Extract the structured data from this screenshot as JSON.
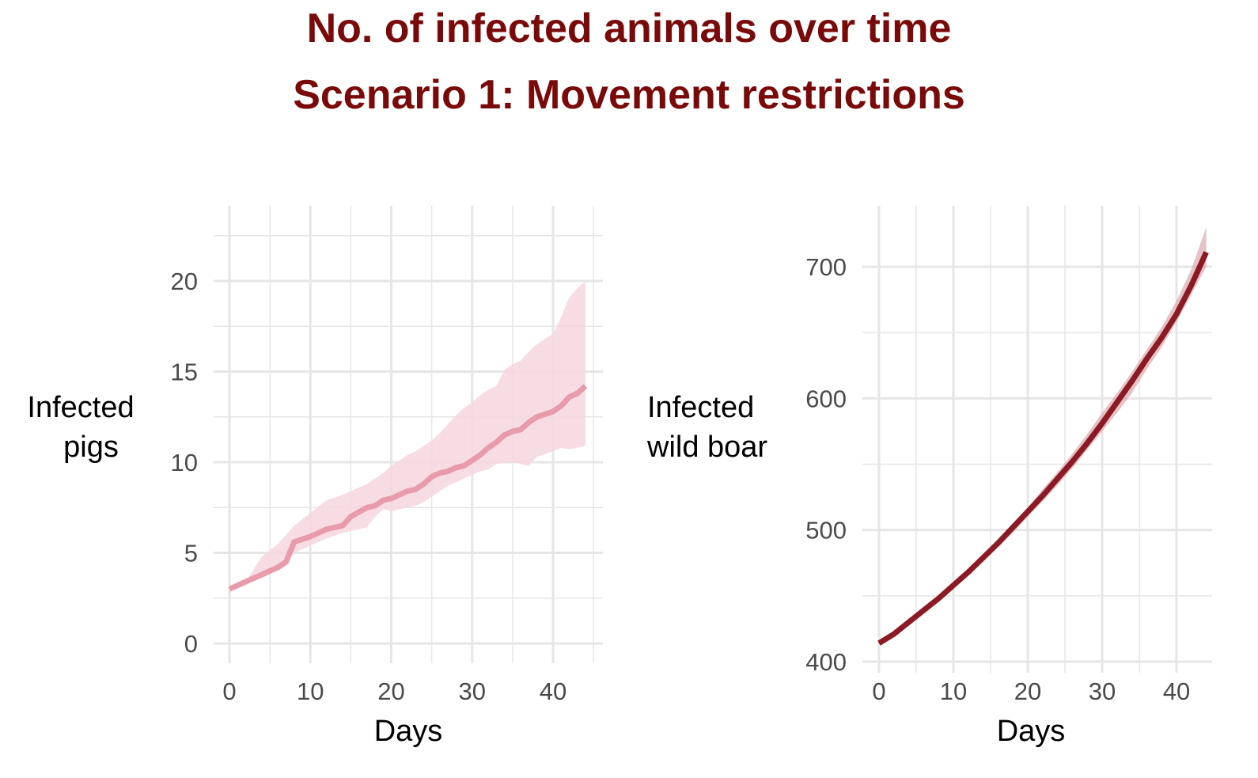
{
  "title_line1": "No. of infected animals over time",
  "title_line2": "Scenario 1: Movement restrictions",
  "colors": {
    "title": "#7a0a0a",
    "pigs_line": "#e89bab",
    "pigs_band": "#f7d6df",
    "boar_line": "#8b1a24",
    "boar_band": "#d9a1a8",
    "grid": "#e6e6e6"
  },
  "chart_data": [
    {
      "type": "line",
      "xlabel": "Days",
      "ylabel_lines": [
        "Infected",
        "pigs"
      ],
      "xlim": [
        0,
        44
      ],
      "ylim": [
        0,
        24
      ],
      "xticks": [
        "0",
        "10",
        "20",
        "30",
        "40"
      ],
      "yticks": [
        "0",
        "5",
        "10",
        "15",
        "20"
      ],
      "grid": true,
      "series": [
        {
          "x": [
            0,
            2,
            4,
            6,
            7,
            8,
            10,
            12,
            14,
            15,
            17,
            18,
            19,
            20,
            22,
            23,
            24,
            25,
            26,
            27,
            28,
            29,
            30,
            31,
            32,
            33,
            34,
            35,
            36,
            37,
            38,
            40,
            41,
            42,
            43,
            44
          ],
          "y": [
            3.0,
            3.4,
            3.8,
            4.2,
            4.5,
            5.6,
            5.9,
            6.3,
            6.5,
            7.0,
            7.5,
            7.6,
            7.9,
            8.0,
            8.4,
            8.5,
            8.8,
            9.2,
            9.4,
            9.5,
            9.7,
            9.8,
            10.1,
            10.4,
            10.8,
            11.1,
            11.5,
            11.7,
            11.8,
            12.2,
            12.5,
            12.8,
            13.1,
            13.6,
            13.8,
            14.2
          ],
          "lower": [
            3.0,
            3.4,
            3.8,
            4.2,
            4.5,
            5.0,
            5.4,
            5.8,
            6.1,
            6.2,
            6.4,
            7.0,
            7.4,
            7.3,
            7.5,
            7.6,
            7.8,
            8.1,
            8.4,
            8.7,
            8.9,
            9.1,
            9.3,
            9.5,
            9.6,
            9.9,
            10.0,
            10.0,
            9.9,
            9.8,
            10.3,
            10.6,
            10.8,
            10.7,
            10.8,
            10.9
          ],
          "upper": [
            3.0,
            3.4,
            4.8,
            5.5,
            6.0,
            6.5,
            7.2,
            7.9,
            8.2,
            8.4,
            8.8,
            9.1,
            9.4,
            9.8,
            10.4,
            10.6,
            10.9,
            11.2,
            11.6,
            12.1,
            12.6,
            13.0,
            13.3,
            13.7,
            14.0,
            14.2,
            15.1,
            15.4,
            15.6,
            16.1,
            16.5,
            17.1,
            18.0,
            19.1,
            19.6,
            20.0
          ]
        }
      ]
    },
    {
      "type": "line",
      "xlabel": "Days",
      "ylabel_lines": [
        "Infected",
        "wild boar"
      ],
      "xlim": [
        0,
        45
      ],
      "ylim": [
        400,
        745
      ],
      "xticks": [
        "0",
        "10",
        "20",
        "30",
        "40"
      ],
      "yticks": [
        "400",
        "500",
        "600",
        "700"
      ],
      "grid": true,
      "series": [
        {
          "x": [
            0,
            2,
            4,
            6,
            8,
            10,
            12,
            14,
            16,
            18,
            20,
            22,
            24,
            26,
            28,
            30,
            32,
            34,
            36,
            38,
            40,
            42,
            44
          ],
          "y": [
            414,
            421,
            430,
            439,
            448,
            458,
            468,
            479,
            490,
            502,
            514,
            526,
            539,
            552,
            566,
            581,
            597,
            613,
            630,
            646,
            664,
            686,
            711
          ],
          "lower": [
            413,
            420,
            429,
            437,
            446,
            456,
            466,
            476,
            487,
            498,
            510,
            522,
            534,
            547,
            561,
            575,
            589,
            604,
            622,
            639,
            658,
            679,
            700
          ],
          "upper": [
            415,
            422,
            431,
            441,
            450,
            460,
            470,
            481,
            493,
            505,
            517,
            531,
            544,
            558,
            573,
            589,
            604,
            620,
            637,
            654,
            674,
            698,
            730
          ]
        }
      ]
    }
  ]
}
